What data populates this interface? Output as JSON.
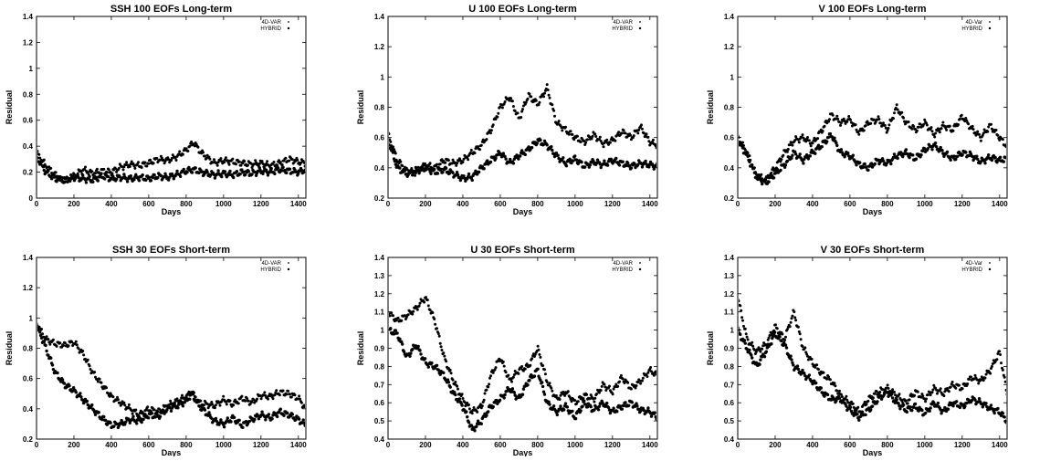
{
  "figure": {
    "panels": [
      {
        "id": "p1",
        "row": 0,
        "col": 0,
        "title": "SSH      100 EOFs Long-term"
      },
      {
        "id": "p2",
        "row": 0,
        "col": 1,
        "title": "U      100 EOFs Long-term"
      },
      {
        "id": "p3",
        "row": 0,
        "col": 2,
        "title": "V      100 EOFs Long-term"
      },
      {
        "id": "p4",
        "row": 1,
        "col": 0,
        "title": "SSH      30 EOFs Short-term"
      },
      {
        "id": "p5",
        "row": 1,
        "col": 1,
        "title": "U      30 EOFs Short-term"
      },
      {
        "id": "p6",
        "row": 1,
        "col": 2,
        "title": "V      30 EOFs Short-term"
      }
    ]
  },
  "chart_data": [
    {
      "type": "scatter",
      "title": "SSH      100 EOFs Long-term",
      "xlabel": "Days",
      "ylabel": "Residual",
      "xlim": [
        0,
        1440
      ],
      "ylim": [
        0,
        1.4
      ],
      "xticks": [
        0,
        200,
        400,
        600,
        800,
        1000,
        1200,
        1400
      ],
      "yticks": [
        0,
        0.2,
        0.4,
        0.6,
        0.8,
        1,
        1.2,
        1.4
      ],
      "legend_position": "top-right",
      "grid": false,
      "series": [
        {
          "name": "4D-VAR",
          "marker": "dot",
          "x": [
            0,
            50,
            100,
            150,
            200,
            250,
            300,
            350,
            400,
            450,
            500,
            550,
            600,
            650,
            700,
            750,
            800,
            840,
            880,
            950,
            1000,
            1050,
            1100,
            1150,
            1200,
            1250,
            1300,
            1350,
            1400,
            1440
          ],
          "y": [
            0.35,
            0.25,
            0.18,
            0.13,
            0.17,
            0.22,
            0.19,
            0.21,
            0.2,
            0.24,
            0.26,
            0.25,
            0.27,
            0.3,
            0.29,
            0.32,
            0.37,
            0.43,
            0.35,
            0.27,
            0.29,
            0.28,
            0.27,
            0.26,
            0.27,
            0.25,
            0.27,
            0.3,
            0.28,
            0.27
          ]
        },
        {
          "name": "HYBRID",
          "marker": "diamond",
          "x": [
            0,
            50,
            100,
            150,
            200,
            250,
            300,
            350,
            400,
            450,
            500,
            550,
            600,
            650,
            700,
            750,
            800,
            840,
            880,
            950,
            1000,
            1050,
            1100,
            1150,
            1200,
            1250,
            1300,
            1350,
            1400,
            1440
          ],
          "y": [
            0.32,
            0.2,
            0.15,
            0.14,
            0.16,
            0.15,
            0.14,
            0.17,
            0.15,
            0.16,
            0.15,
            0.16,
            0.15,
            0.17,
            0.16,
            0.18,
            0.21,
            0.22,
            0.2,
            0.18,
            0.19,
            0.18,
            0.2,
            0.19,
            0.21,
            0.2,
            0.22,
            0.21,
            0.2,
            0.22
          ]
        }
      ]
    },
    {
      "type": "scatter",
      "title": "U      100 EOFs Long-term",
      "xlabel": "Days",
      "ylabel": "Residual",
      "xlim": [
        0,
        1440
      ],
      "ylim": [
        0.2,
        1.4
      ],
      "xticks": [
        0,
        200,
        400,
        600,
        800,
        1000,
        1200,
        1400
      ],
      "yticks": [
        0.2,
        0.4,
        0.6,
        0.8,
        1,
        1.2,
        1.4
      ],
      "legend_position": "top-right",
      "grid": false,
      "series": [
        {
          "name": "4D-VAR",
          "marker": "dot",
          "x": [
            0,
            50,
            100,
            150,
            200,
            250,
            300,
            350,
            400,
            450,
            500,
            550,
            600,
            650,
            700,
            750,
            800,
            850,
            900,
            950,
            1000,
            1050,
            1100,
            1150,
            1200,
            1250,
            1300,
            1350,
            1400,
            1440
          ],
          "y": [
            0.62,
            0.45,
            0.38,
            0.37,
            0.42,
            0.4,
            0.45,
            0.43,
            0.45,
            0.5,
            0.55,
            0.65,
            0.8,
            0.87,
            0.72,
            0.88,
            0.82,
            0.93,
            0.7,
            0.65,
            0.6,
            0.57,
            0.62,
            0.56,
            0.58,
            0.64,
            0.6,
            0.67,
            0.57,
            0.55
          ]
        },
        {
          "name": "HYBRID",
          "marker": "diamond",
          "x": [
            0,
            50,
            100,
            150,
            200,
            250,
            300,
            350,
            400,
            450,
            500,
            550,
            600,
            650,
            700,
            750,
            800,
            850,
            900,
            950,
            1000,
            1050,
            1100,
            1150,
            1200,
            1250,
            1300,
            1350,
            1400,
            1440
          ],
          "y": [
            0.58,
            0.4,
            0.36,
            0.38,
            0.4,
            0.37,
            0.39,
            0.36,
            0.33,
            0.34,
            0.4,
            0.45,
            0.5,
            0.43,
            0.48,
            0.52,
            0.58,
            0.55,
            0.48,
            0.43,
            0.46,
            0.41,
            0.44,
            0.42,
            0.45,
            0.43,
            0.41,
            0.43,
            0.42,
            0.41
          ]
        }
      ]
    },
    {
      "type": "scatter",
      "title": "V      100 EOFs Long-term",
      "xlabel": "Days",
      "ylabel": "Residual",
      "xlim": [
        0,
        1440
      ],
      "ylim": [
        0.2,
        1.4
      ],
      "xticks": [
        0,
        200,
        400,
        600,
        800,
        1000,
        1200,
        1400
      ],
      "yticks": [
        0.2,
        0.4,
        0.6,
        0.8,
        1,
        1.2,
        1.4
      ],
      "legend_position": "top-right",
      "grid": false,
      "series": [
        {
          "name": "4D-Var",
          "marker": "dot",
          "x": [
            0,
            50,
            100,
            150,
            200,
            250,
            300,
            350,
            400,
            450,
            500,
            550,
            600,
            650,
            700,
            750,
            800,
            850,
            900,
            950,
            1000,
            1050,
            1100,
            1150,
            1200,
            1250,
            1300,
            1350,
            1400,
            1440
          ],
          "y": [
            0.6,
            0.5,
            0.35,
            0.32,
            0.4,
            0.5,
            0.58,
            0.6,
            0.56,
            0.65,
            0.75,
            0.7,
            0.72,
            0.63,
            0.7,
            0.72,
            0.65,
            0.8,
            0.7,
            0.65,
            0.7,
            0.62,
            0.68,
            0.65,
            0.74,
            0.66,
            0.6,
            0.68,
            0.6,
            0.54
          ]
        },
        {
          "name": "HYBRID",
          "marker": "diamond",
          "x": [
            0,
            50,
            100,
            150,
            200,
            250,
            300,
            350,
            400,
            450,
            500,
            550,
            600,
            650,
            700,
            750,
            800,
            850,
            900,
            950,
            1000,
            1050,
            1100,
            1150,
            1200,
            1250,
            1300,
            1350,
            1400,
            1440
          ],
          "y": [
            0.58,
            0.48,
            0.34,
            0.3,
            0.36,
            0.42,
            0.5,
            0.45,
            0.5,
            0.55,
            0.62,
            0.5,
            0.48,
            0.42,
            0.4,
            0.45,
            0.43,
            0.48,
            0.5,
            0.46,
            0.52,
            0.55,
            0.5,
            0.46,
            0.5,
            0.48,
            0.44,
            0.47,
            0.45,
            0.46
          ]
        }
      ]
    },
    {
      "type": "scatter",
      "title": "SSH      30 EOFs Short-term",
      "xlabel": "Days",
      "ylabel": "Residual",
      "xlim": [
        0,
        1440
      ],
      "ylim": [
        0.2,
        1.4
      ],
      "xticks": [
        0,
        200,
        400,
        600,
        800,
        1000,
        1200,
        1400
      ],
      "yticks": [
        0.2,
        0.4,
        0.6,
        0.8,
        1,
        1.2,
        1.4
      ],
      "legend_position": "top-right",
      "grid": false,
      "series": [
        {
          "name": "4D-VAR",
          "marker": "dot",
          "x": [
            0,
            50,
            100,
            150,
            200,
            250,
            300,
            350,
            400,
            450,
            500,
            550,
            600,
            650,
            700,
            750,
            800,
            830,
            870,
            950,
            1000,
            1050,
            1100,
            1150,
            1200,
            1250,
            1300,
            1350,
            1400,
            1440
          ],
          "y": [
            0.96,
            0.86,
            0.83,
            0.82,
            0.84,
            0.76,
            0.64,
            0.56,
            0.48,
            0.44,
            0.4,
            0.36,
            0.4,
            0.38,
            0.42,
            0.45,
            0.48,
            0.51,
            0.44,
            0.42,
            0.46,
            0.43,
            0.47,
            0.44,
            0.49,
            0.48,
            0.51,
            0.5,
            0.47,
            0.4
          ]
        },
        {
          "name": "HYBRID",
          "marker": "diamond",
          "x": [
            0,
            50,
            100,
            150,
            200,
            250,
            300,
            350,
            400,
            450,
            500,
            550,
            600,
            650,
            700,
            750,
            800,
            830,
            870,
            950,
            1000,
            1050,
            1100,
            1150,
            1200,
            1250,
            1300,
            1350,
            1400,
            1440
          ],
          "y": [
            0.96,
            0.8,
            0.64,
            0.56,
            0.52,
            0.46,
            0.4,
            0.34,
            0.29,
            0.3,
            0.33,
            0.32,
            0.36,
            0.35,
            0.4,
            0.42,
            0.45,
            0.5,
            0.42,
            0.32,
            0.3,
            0.34,
            0.29,
            0.33,
            0.36,
            0.34,
            0.38,
            0.36,
            0.33,
            0.29
          ]
        }
      ]
    },
    {
      "type": "scatter",
      "title": "U      30 EOFs Short-term",
      "xlabel": "Days",
      "ylabel": "Residual",
      "xlim": [
        0,
        1440
      ],
      "ylim": [
        0.4,
        1.4
      ],
      "xticks": [
        0,
        200,
        400,
        600,
        800,
        1000,
        1200,
        1400
      ],
      "yticks": [
        0.4,
        0.5,
        0.6,
        0.7,
        0.8,
        0.9,
        1,
        1.1,
        1.2,
        1.3,
        1.4
      ],
      "legend_position": "top-right",
      "grid": false,
      "series": [
        {
          "name": "4D-VAR",
          "marker": "dot",
          "x": [
            0,
            50,
            100,
            150,
            200,
            250,
            300,
            350,
            400,
            450,
            500,
            550,
            600,
            650,
            700,
            750,
            800,
            850,
            900,
            950,
            1000,
            1050,
            1100,
            1150,
            1200,
            1250,
            1300,
            1350,
            1400,
            1440
          ],
          "y": [
            1.1,
            1.05,
            1.08,
            1.12,
            1.18,
            1.05,
            0.85,
            0.72,
            0.62,
            0.55,
            0.58,
            0.75,
            0.85,
            0.72,
            0.78,
            0.8,
            0.9,
            0.72,
            0.62,
            0.66,
            0.6,
            0.64,
            0.62,
            0.7,
            0.66,
            0.74,
            0.68,
            0.72,
            0.78,
            0.75
          ]
        },
        {
          "name": "HYBRID",
          "marker": "diamond",
          "x": [
            0,
            50,
            100,
            150,
            200,
            250,
            300,
            350,
            400,
            450,
            500,
            550,
            600,
            650,
            700,
            750,
            800,
            850,
            900,
            950,
            1000,
            1050,
            1100,
            1150,
            1200,
            1250,
            1300,
            1350,
            1400,
            1440
          ],
          "y": [
            1.0,
            0.98,
            0.85,
            0.92,
            0.82,
            0.8,
            0.75,
            0.65,
            0.58,
            0.45,
            0.5,
            0.58,
            0.62,
            0.68,
            0.62,
            0.72,
            0.78,
            0.6,
            0.55,
            0.58,
            0.52,
            0.6,
            0.56,
            0.6,
            0.55,
            0.58,
            0.6,
            0.56,
            0.55,
            0.52
          ]
        }
      ]
    },
    {
      "type": "scatter",
      "title": "V      30 EOFs Short-term",
      "xlabel": "Days",
      "ylabel": "Residual",
      "xlim": [
        0,
        1440
      ],
      "ylim": [
        0.4,
        1.4
      ],
      "xticks": [
        0,
        200,
        400,
        600,
        800,
        1000,
        1200,
        1400
      ],
      "yticks": [
        0.4,
        0.5,
        0.6,
        0.7,
        0.8,
        0.9,
        1,
        1.1,
        1.2,
        1.3,
        1.4
      ],
      "legend_position": "top-right",
      "grid": false,
      "series": [
        {
          "name": "4D-Var",
          "marker": "dot",
          "x": [
            0,
            50,
            100,
            150,
            200,
            250,
            300,
            350,
            400,
            450,
            500,
            550,
            600,
            650,
            700,
            750,
            800,
            850,
            900,
            950,
            1000,
            1050,
            1100,
            1150,
            1200,
            1250,
            1300,
            1350,
            1400,
            1440
          ],
          "y": [
            1.18,
            0.95,
            0.88,
            0.92,
            1.02,
            0.95,
            1.1,
            0.9,
            0.82,
            0.76,
            0.72,
            0.64,
            0.6,
            0.55,
            0.62,
            0.66,
            0.68,
            0.64,
            0.6,
            0.66,
            0.62,
            0.68,
            0.65,
            0.7,
            0.68,
            0.74,
            0.72,
            0.78,
            0.88,
            0.65
          ]
        },
        {
          "name": "HYBRID",
          "marker": "diamond",
          "x": [
            0,
            50,
            100,
            150,
            200,
            250,
            300,
            350,
            400,
            450,
            500,
            550,
            600,
            650,
            700,
            750,
            800,
            850,
            900,
            950,
            1000,
            1050,
            1100,
            1150,
            1200,
            1250,
            1300,
            1350,
            1400,
            1440
          ],
          "y": [
            1.0,
            0.9,
            0.8,
            0.88,
            0.98,
            0.92,
            0.8,
            0.76,
            0.72,
            0.66,
            0.62,
            0.62,
            0.56,
            0.52,
            0.56,
            0.62,
            0.66,
            0.6,
            0.56,
            0.58,
            0.54,
            0.6,
            0.55,
            0.6,
            0.58,
            0.62,
            0.6,
            0.57,
            0.55,
            0.5
          ]
        }
      ]
    }
  ]
}
